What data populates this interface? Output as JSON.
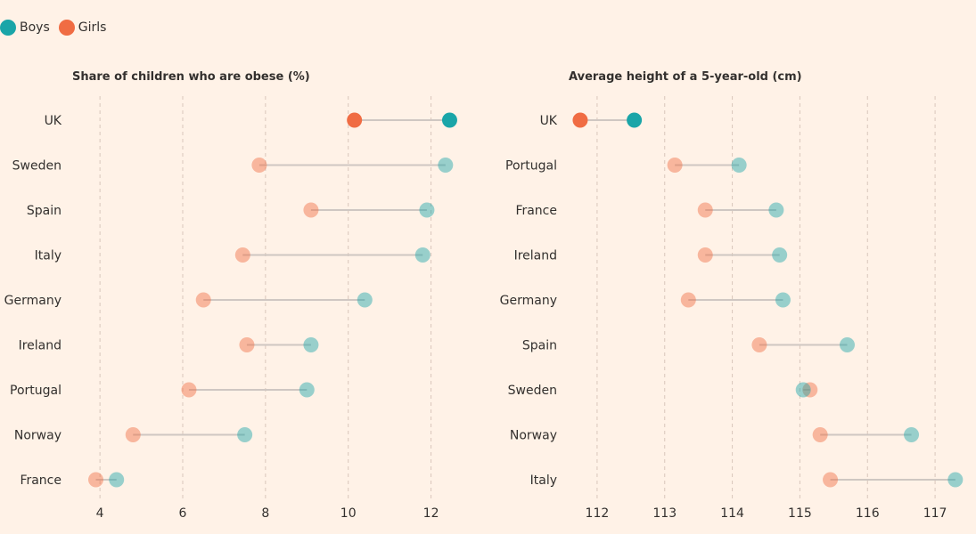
{
  "legend": {
    "boys_label": "Boys",
    "girls_label": "Girls"
  },
  "colors": {
    "boys": "#1aa5a8",
    "girls": "#f06c43",
    "background": "#fff2e7",
    "gridline": "#d9c6bb",
    "connector": "#cfc7c2"
  },
  "chart_data": [
    {
      "type": "dot-range",
      "title": "Share of children who are obese (%)",
      "categories": [
        "UK",
        "Sweden",
        "Spain",
        "Italy",
        "Germany",
        "Ireland",
        "Portugal",
        "Norway",
        "France"
      ],
      "series": [
        {
          "name": "Boys",
          "values": [
            12.45,
            12.35,
            11.9,
            11.8,
            10.4,
            9.1,
            9.0,
            7.5,
            4.4
          ]
        },
        {
          "name": "Girls",
          "values": [
            10.15,
            7.85,
            9.1,
            7.45,
            6.5,
            7.55,
            6.15,
            4.8,
            3.9
          ]
        }
      ],
      "xticks": [
        4,
        6,
        8,
        10,
        12
      ],
      "xlim": [
        3.2,
        13.0
      ],
      "highlight": "UK"
    },
    {
      "type": "dot-range",
      "title": "Average height of a 5-year-old (cm)",
      "categories": [
        "UK",
        "Portugal",
        "France",
        "Ireland",
        "Germany",
        "Spain",
        "Sweden",
        "Norway",
        "Italy"
      ],
      "series": [
        {
          "name": "Boys",
          "values": [
            112.55,
            114.1,
            114.65,
            114.7,
            114.75,
            115.7,
            115.05,
            116.65,
            117.3
          ]
        },
        {
          "name": "Girls",
          "values": [
            111.75,
            113.15,
            113.6,
            113.6,
            113.35,
            114.4,
            115.15,
            115.3,
            115.45
          ]
        }
      ],
      "xticks": [
        112,
        113,
        114,
        115,
        116,
        117
      ],
      "xlim": [
        111.5,
        117.5
      ],
      "highlight": "UK"
    }
  ]
}
